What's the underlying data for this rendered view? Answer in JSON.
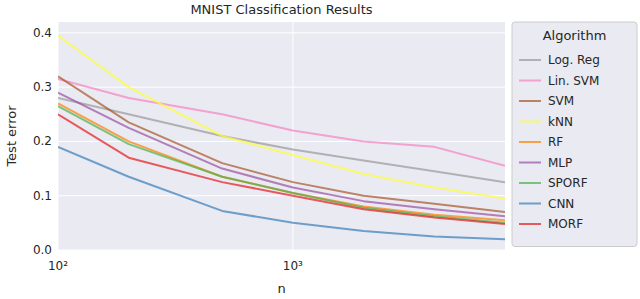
{
  "chart_data": {
    "type": "line",
    "title": "MNIST Classification Results",
    "x_label": "n",
    "y_label": "Test error",
    "log": "x",
    "grid": true,
    "legend": "right",
    "legend_title": "Algorithm",
    "x": [
      100,
      200,
      500,
      1000,
      2000,
      4000,
      8000
    ],
    "xlim": [
      100,
      8000
    ],
    "xticks": [
      {
        "value": 100,
        "label": "10²"
      },
      {
        "value": 1000,
        "label": "10³"
      }
    ],
    "ylim": [
      0,
      0.42
    ],
    "yticks": [
      {
        "value": 0,
        "label": "0.0"
      },
      0.1,
      0.2,
      0.3,
      0.4
    ],
    "series": [
      {
        "name": "Log. Reg",
        "color": "#999999",
        "values": [
          0.28,
          0.25,
          0.21,
          0.185,
          0.165,
          0.145,
          0.125
        ]
      },
      {
        "name": "Lin. SVM",
        "color": "#f781bf",
        "values": [
          0.315,
          0.28,
          0.25,
          0.22,
          0.2,
          0.19,
          0.155
        ]
      },
      {
        "name": "SVM",
        "color": "#a65628",
        "values": [
          0.32,
          0.235,
          0.16,
          0.125,
          0.1,
          0.085,
          0.07
        ]
      },
      {
        "name": "kNN",
        "color": "#ffff33",
        "values": [
          0.395,
          0.3,
          0.21,
          0.175,
          0.14,
          0.115,
          0.095
        ]
      },
      {
        "name": "RF",
        "color": "#ff7f00",
        "values": [
          0.27,
          0.2,
          0.135,
          0.105,
          0.08,
          0.065,
          0.055
        ]
      },
      {
        "name": "MLP",
        "color": "#984ea3",
        "values": [
          0.29,
          0.225,
          0.15,
          0.115,
          0.09,
          0.075,
          0.062
        ]
      },
      {
        "name": "SPORF",
        "color": "#4daf4a",
        "values": [
          0.265,
          0.195,
          0.135,
          0.105,
          0.078,
          0.062,
          0.05
        ]
      },
      {
        "name": "CNN",
        "color": "#377eb8",
        "values": [
          0.19,
          0.135,
          0.072,
          0.05,
          0.035,
          0.025,
          0.02
        ]
      },
      {
        "name": "MORF",
        "color": "#e41a1c",
        "values": [
          0.25,
          0.17,
          0.125,
          0.1,
          0.075,
          0.06,
          0.048
        ]
      }
    ]
  }
}
